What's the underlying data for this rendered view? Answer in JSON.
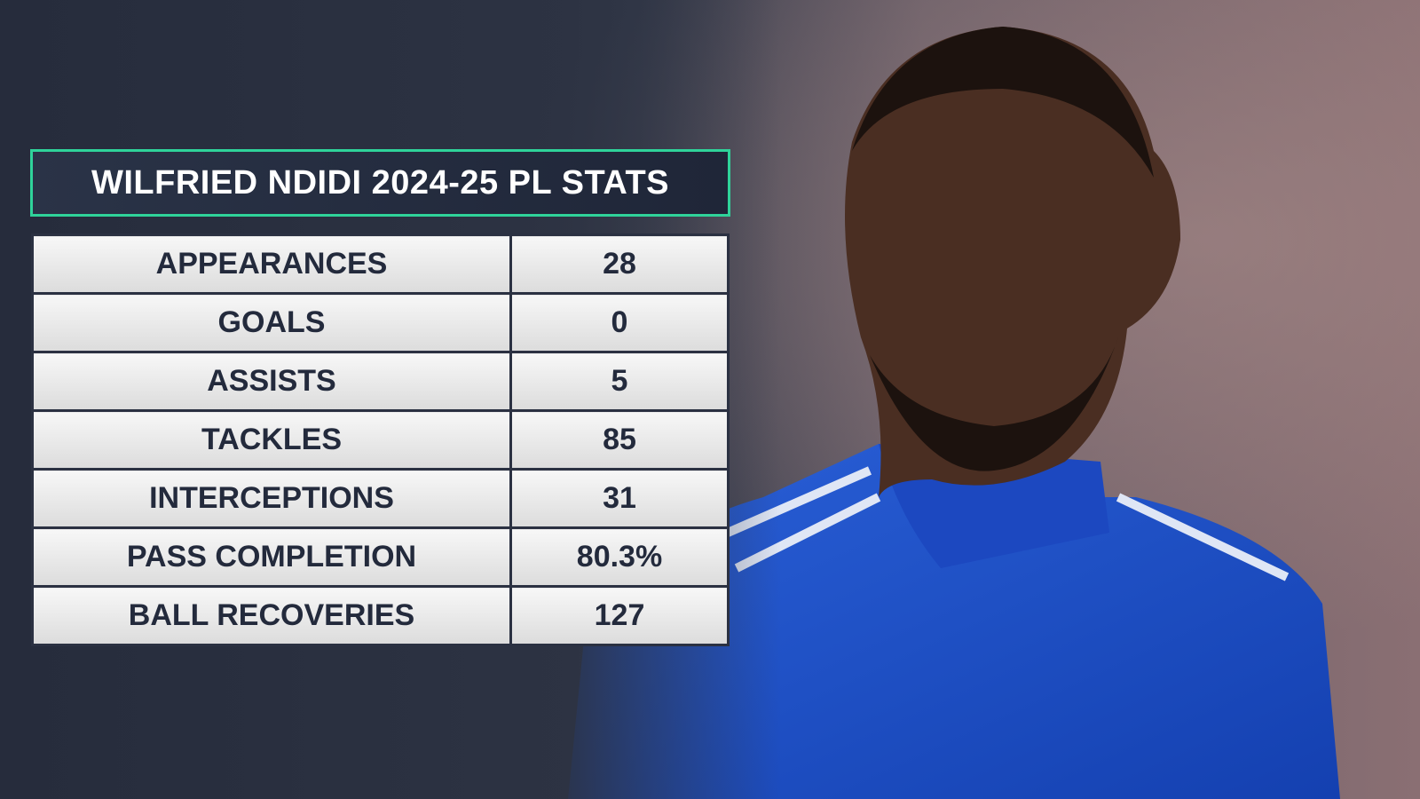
{
  "header": {
    "title": "WILFRIED NDIDI 2024-25 PL STATS"
  },
  "table": {
    "rows": [
      [
        "APPEARANCES",
        "28"
      ],
      [
        "GOALS",
        "0"
      ],
      [
        "ASSISTS",
        "5"
      ],
      [
        "TACKLES",
        "85"
      ],
      [
        "INTERCEPTIONS",
        "31"
      ],
      [
        "PASS COMPLETION",
        "80.3%"
      ],
      [
        "BALL RECOVERIES",
        "127"
      ]
    ]
  }
}
